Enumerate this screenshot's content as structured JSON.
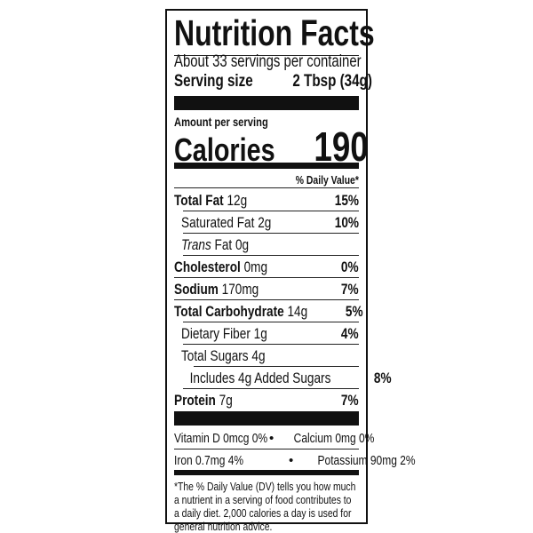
{
  "title": "Nutrition Facts",
  "servings_per_container": "About 33 servings per container",
  "serving_size_label": "Serving size",
  "serving_size_value": "2 Tbsp (34g)",
  "amount_per_serving": "Amount per serving",
  "calories_label": "Calories",
  "calories_value": "190",
  "daily_value_header": "% Daily Value*",
  "nutrients": [
    {
      "name": "Total Fat",
      "amount": "12g",
      "dv": "15%",
      "bold": true,
      "indent": 0
    },
    {
      "name": "Saturated Fat",
      "amount": "2g",
      "dv": "10%",
      "bold": false,
      "indent": 1
    },
    {
      "name": "Trans",
      "name2": "Fat",
      "amount": "0g",
      "dv": "",
      "bold": false,
      "indent": 1,
      "italic": true
    },
    {
      "name": "Cholesterol",
      "amount": "0mg",
      "dv": "0%",
      "bold": true,
      "indent": 0
    },
    {
      "name": "Sodium",
      "amount": "170mg",
      "dv": "7%",
      "bold": true,
      "indent": 0
    },
    {
      "name": "Total Carbohydrate",
      "amount": "14g",
      "dv": "5%",
      "bold": true,
      "indent": 0
    },
    {
      "name": "Dietary Fiber",
      "amount": "1g",
      "dv": "4%",
      "bold": false,
      "indent": 1
    },
    {
      "name": "Total Sugars",
      "amount": "4g",
      "dv": "",
      "bold": false,
      "indent": 1
    },
    {
      "name": "Includes 4g Added Sugars",
      "amount": "",
      "dv": "8%",
      "bold": false,
      "indent": 2
    },
    {
      "name": "Protein",
      "amount": "7g",
      "dv": "7%",
      "bold": true,
      "indent": 0
    }
  ],
  "vitamins": [
    {
      "left": "Vitamin D 0mcg 0%",
      "right": "Calcium 0mg 0%"
    },
    {
      "left": "Iron 0.7mg 4%",
      "right": "Potassium 90mg 2%"
    }
  ],
  "bullet": "•",
  "footnote": "*The % Daily Value (DV) tells you how much a nutrient in a serving of food contributes to a daily diet. 2,000 calories a day is used for general nutrition advice."
}
